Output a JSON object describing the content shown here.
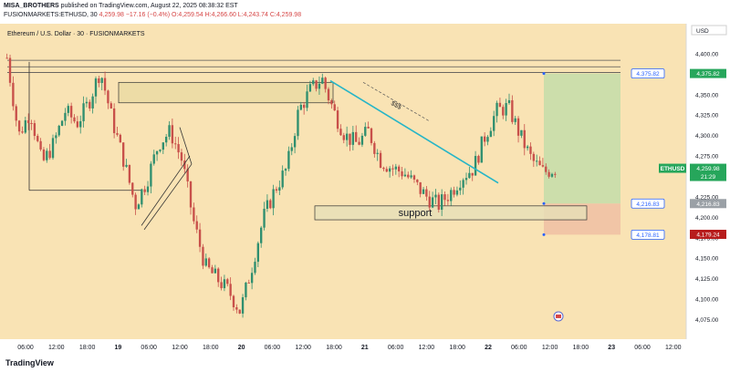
{
  "header": {
    "author": "MISA_BROTHERS",
    "publish_text": "published on TradingView.com, August 22, 2025 08:38:32 EST",
    "symbol": "FUSIONMARKETS:ETHUSD, 30",
    "ohlc": "4,259.98 −17.16 (−0.4%) O:4,259.54 H:4,266.60 L:4,243.74 C:4,259.98"
  },
  "chart_title": "Ethereum / U.S. Dollar · 30 · FUSIONMARKETS",
  "currency_label": "USD",
  "footer_logo": "TradingView",
  "colors": {
    "background": "#f9e3b4",
    "up": "#2f8f6f",
    "down": "#c8504a",
    "trend_line": "#26b5c7",
    "target_zone": "#c7ddaa",
    "stop_zone": "#efc1a4",
    "price_label_blue": "#2962ff",
    "price_label_green": "#26a65b",
    "price_label_red": "#b71c1c"
  },
  "chart_data": {
    "type": "candlestick",
    "ylim": [
      4060,
      4430
    ],
    "y_ticks": [
      "4,400.00",
      "4,375.00",
      "4,350.00",
      "4,325.00",
      "4,300.00",
      "4,275.00",
      "4,250.00",
      "4,225.00",
      "4,200.00",
      "4,175.00",
      "4,150.00",
      "4,125.00",
      "4,100.00",
      "4,075.00"
    ],
    "x_ticks": [
      "06:00",
      "12:00",
      "18:00",
      "19",
      "06:00",
      "12:00",
      "18:00",
      "20",
      "06:00",
      "12:00",
      "18:00",
      "21",
      "06:00",
      "12:00",
      "18:00",
      "22",
      "06:00",
      "12:00",
      "18:00",
      "23",
      "06:00",
      "12:00"
    ],
    "close_path": [
      4395,
      4300,
      4330,
      4265,
      4290,
      4330,
      4315,
      4340,
      4380,
      4320,
      4270,
      4215,
      4245,
      4290,
      4305,
      4270,
      4195,
      4140,
      4125,
      4110,
      4085,
      4140,
      4200,
      4235,
      4260,
      4330,
      4355,
      4370,
      4330,
      4300,
      4290,
      4305,
      4270,
      4260,
      4255,
      4240,
      4225,
      4215,
      4230,
      4250,
      4260,
      4300,
      4330,
      4335,
      4300,
      4270,
      4255,
      4260
    ],
    "annotations": [
      {
        "type": "zone",
        "label": "support",
        "y": [
          4197,
          4214
        ]
      },
      {
        "type": "text",
        "label": "$$$"
      }
    ],
    "levels": [
      {
        "label": "4,375.82",
        "value": 4375.82,
        "style": "blue"
      },
      {
        "label": "4,216.83",
        "value": 4216.83,
        "style": "blue"
      },
      {
        "label": "4,178.81",
        "value": 4178.81,
        "style": "blue"
      }
    ],
    "axis_labels": [
      {
        "label": "4,375.82",
        "value": 4375.82,
        "style": "green"
      },
      {
        "label": "4,259.98",
        "value": 4259.98,
        "style": "green"
      },
      {
        "label": "21:29",
        "value": 4259.98,
        "style": "green-sub"
      },
      {
        "label": "4,216.83",
        "value": 4216.83,
        "style": "gray"
      },
      {
        "label": "4,179.24",
        "value": 4179.24,
        "style": "red"
      }
    ],
    "symbol_tag": "ETHUSD"
  }
}
